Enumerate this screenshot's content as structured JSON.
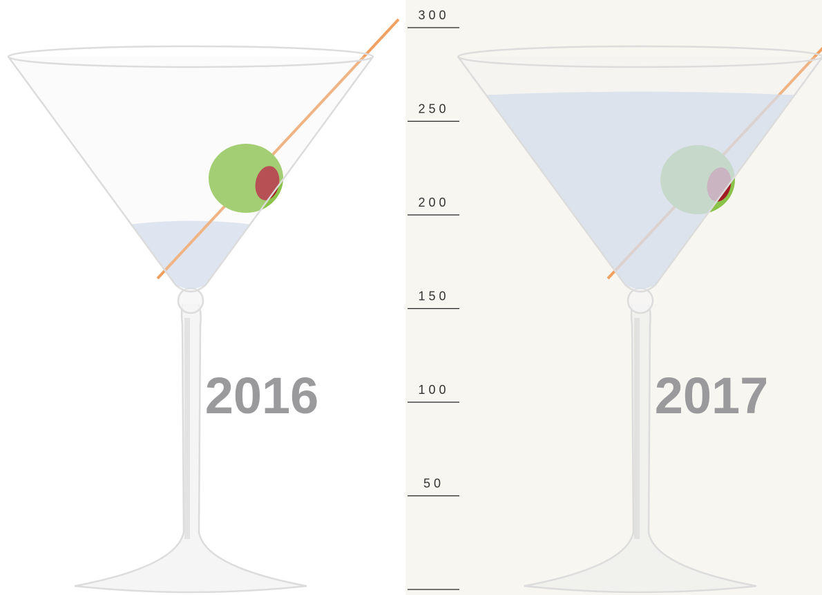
{
  "chart_data": {
    "type": "glass",
    "categories": [
      "2016",
      "2017"
    ],
    "values": [
      195,
      264
    ],
    "color": "#c9d6ea",
    "ylim": [
      0,
      300
    ],
    "yticks": [
      50,
      100,
      150,
      200,
      250,
      300
    ]
  }
}
